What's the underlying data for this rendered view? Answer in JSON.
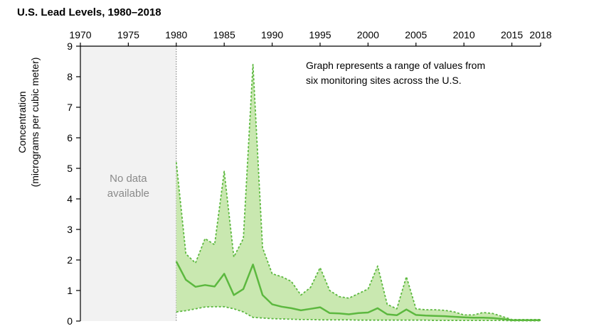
{
  "chart_data": {
    "type": "area",
    "title": "U.S. Lead Levels, 1980–2018",
    "xlabel": "",
    "ylabel": "Concentration",
    "ylabel_sub": "(micrograms per cubic meter)",
    "x_ticks": [
      1970,
      1975,
      1980,
      1985,
      1990,
      1995,
      2000,
      2005,
      2010,
      2015,
      2018
    ],
    "y_ticks": [
      0,
      1,
      2,
      3,
      4,
      5,
      6,
      7,
      8,
      9
    ],
    "xlim": [
      1970,
      2018
    ],
    "ylim": [
      0,
      9
    ],
    "annotation": [
      "Graph represents a range of values from",
      "six monitoring sites across the U.S."
    ],
    "no_data": {
      "label_lines": [
        "No data",
        "available"
      ],
      "x_range": [
        1970,
        1980
      ]
    },
    "x": [
      1980,
      1981,
      1982,
      1983,
      1984,
      1985,
      1986,
      1987,
      1988,
      1989,
      1990,
      1991,
      1992,
      1993,
      1994,
      1995,
      1996,
      1997,
      1998,
      1999,
      2000,
      2001,
      2002,
      2003,
      2004,
      2005,
      2006,
      2007,
      2008,
      2009,
      2010,
      2011,
      2012,
      2013,
      2014,
      2015,
      2016,
      2017,
      2018
    ],
    "series": [
      {
        "values": [
          5.2,
          2.2,
          1.9,
          2.7,
          2.5,
          4.9,
          2.1,
          2.7,
          8.4,
          2.4,
          1.55,
          1.45,
          1.3,
          0.85,
          1.1,
          1.75,
          1.0,
          0.8,
          0.75,
          0.9,
          1.05,
          1.8,
          0.55,
          0.4,
          1.45,
          0.4,
          0.37,
          0.37,
          0.35,
          0.3,
          0.2,
          0.2,
          0.28,
          0.25,
          0.15,
          0.05,
          0.05,
          0.05,
          0.05
        ]
      },
      {
        "values": [
          1.95,
          1.35,
          1.12,
          1.18,
          1.13,
          1.55,
          0.85,
          1.05,
          1.85,
          0.85,
          0.55,
          0.47,
          0.42,
          0.35,
          0.4,
          0.45,
          0.26,
          0.25,
          0.22,
          0.26,
          0.28,
          0.42,
          0.22,
          0.19,
          0.38,
          0.2,
          0.18,
          0.17,
          0.16,
          0.14,
          0.12,
          0.11,
          0.11,
          0.1,
          0.07,
          0.03,
          0.03,
          0.03,
          0.03
        ]
      },
      {
        "values": [
          0.3,
          0.34,
          0.4,
          0.46,
          0.47,
          0.47,
          0.4,
          0.3,
          0.12,
          0.1,
          0.08,
          0.07,
          0.06,
          0.05,
          0.05,
          0.04,
          0.04,
          0.04,
          0.04,
          0.03,
          0.03,
          0.03,
          0.03,
          0.03,
          0.03,
          0.03,
          0.03,
          0.02,
          0.02,
          0.02,
          0.02,
          0.02,
          0.02,
          0.02,
          0.02,
          0.01,
          0.01,
          0.01,
          0.01
        ]
      }
    ],
    "colors": {
      "fill": "#c9e8b0",
      "line": "#5cb83f",
      "no_data_bg": "#f2f2f2",
      "no_data_text": "#8a8a8a",
      "axis": "#000000"
    },
    "grid": false,
    "legend": "none"
  }
}
